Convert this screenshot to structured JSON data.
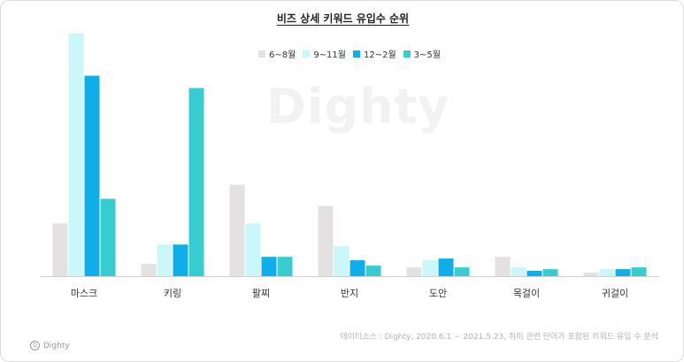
{
  "chart_data": {
    "type": "bar",
    "title": "비즈 상세 키워드 유입수 순위",
    "categories": [
      "마스크",
      "키링",
      "팔찌",
      "반지",
      "도안",
      "목걸이",
      "귀걸이"
    ],
    "series": [
      {
        "name": "6~8월",
        "color": "#e3e1e1",
        "values": [
          30,
          7,
          52,
          40,
          5,
          11,
          2
        ]
      },
      {
        "name": "9~11월",
        "color": "#cbf7fb",
        "values": [
          138,
          18,
          30,
          17,
          9,
          5,
          4
        ]
      },
      {
        "name": "12~2월",
        "color": "#10aee9",
        "values": [
          114,
          18,
          11,
          9,
          10,
          3,
          4
        ]
      },
      {
        "name": "3~5월",
        "color": "#37cdd0",
        "values": [
          44,
          107,
          11,
          6,
          5,
          4,
          5
        ]
      }
    ],
    "ylim": [
      0,
      140
    ],
    "legend_position": "top-center",
    "grid": false
  },
  "watermark": "Dighty",
  "source": "데이터소스 : Dighty, 2020.6.1 ~ 2021.5.23, 취미 관련 단어가 포함된 키워드 유입 수 분석",
  "brand": {
    "icon_glyph": "D",
    "label": "Dighty"
  }
}
